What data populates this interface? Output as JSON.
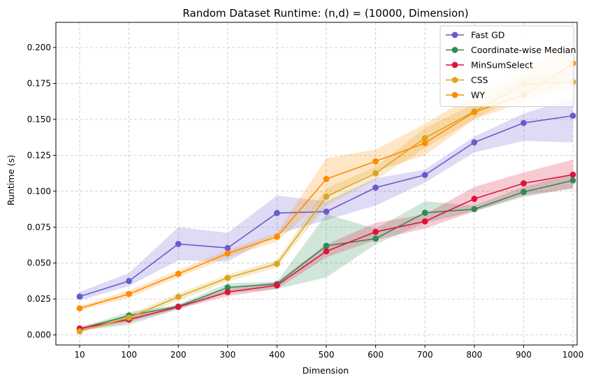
{
  "chart_data": {
    "type": "line",
    "title": "Random Dataset Runtime: (n,d) = (10000, Dimension)",
    "xlabel": "Dimension",
    "ylabel": "Runtime (s)",
    "categories": [
      "10",
      "100",
      "200",
      "300",
      "400",
      "500",
      "600",
      "700",
      "800",
      "900",
      "1000"
    ],
    "ylim": [
      -0.007,
      0.2175
    ],
    "yticks": [
      0.0,
      0.025,
      0.05,
      0.075,
      0.1,
      0.125,
      0.15,
      0.175,
      0.2
    ],
    "ytick_labels": [
      "0.000",
      "0.025",
      "0.050",
      "0.075",
      "0.100",
      "0.125",
      "0.150",
      "0.175",
      "0.200"
    ],
    "grid": true,
    "legend_position": "top-right",
    "series": [
      {
        "name": "Fast GD",
        "color": "#6a5acd",
        "values": [
          0.0267,
          0.0375,
          0.0633,
          0.0605,
          0.0848,
          0.0858,
          0.1025,
          0.1113,
          0.134,
          0.1475,
          0.1525
        ],
        "lower": [
          0.024,
          0.034,
          0.052,
          0.051,
          0.07,
          0.08,
          0.09,
          0.106,
          0.127,
          0.135,
          0.134
        ],
        "upper": [
          0.03,
          0.043,
          0.075,
          0.071,
          0.097,
          0.093,
          0.109,
          0.115,
          0.138,
          0.154,
          0.165
        ]
      },
      {
        "name": "Coordinate-wise Median",
        "color": "#2e8b57",
        "values": [
          0.004,
          0.0135,
          0.0198,
          0.033,
          0.0355,
          0.062,
          0.067,
          0.085,
          0.0875,
          0.0995,
          0.1075
        ],
        "lower": [
          0.003,
          0.007,
          0.018,
          0.029,
          0.032,
          0.04,
          0.063,
          0.078,
          0.086,
          0.096,
          0.102
        ],
        "upper": [
          0.005,
          0.016,
          0.021,
          0.036,
          0.037,
          0.084,
          0.074,
          0.093,
          0.09,
          0.103,
          0.112
        ]
      },
      {
        "name": "MinSumSelect",
        "color": "#dc143c",
        "values": [
          0.0045,
          0.0107,
          0.0195,
          0.0298,
          0.0345,
          0.0582,
          0.0717,
          0.079,
          0.0947,
          0.1055,
          0.1115
        ],
        "lower": [
          0.003,
          0.009,
          0.018,
          0.027,
          0.032,
          0.054,
          0.066,
          0.074,
          0.086,
          0.097,
          0.102
        ],
        "upper": [
          0.006,
          0.0125,
          0.021,
          0.032,
          0.037,
          0.063,
          0.078,
          0.084,
          0.103,
          0.113,
          0.122
        ]
      },
      {
        "name": "CSS",
        "color": "#daa520",
        "values": [
          0.0025,
          0.012,
          0.0265,
          0.0397,
          0.0495,
          0.0962,
          0.1125,
          0.137,
          0.1555,
          0.1745,
          0.176
        ],
        "lower": [
          0.002,
          0.01,
          0.024,
          0.037,
          0.047,
          0.09,
          0.108,
          0.13,
          0.15,
          0.168,
          0.17
        ],
        "upper": [
          0.0035,
          0.014,
          0.029,
          0.042,
          0.052,
          0.102,
          0.117,
          0.144,
          0.161,
          0.18,
          0.182
        ]
      },
      {
        "name": "WY",
        "color": "#ff8c00",
        "values": [
          0.0185,
          0.0285,
          0.0425,
          0.0567,
          0.0683,
          0.1085,
          0.1208,
          0.1335,
          0.155,
          0.167,
          0.189
        ],
        "lower": [
          0.017,
          0.026,
          0.04,
          0.054,
          0.065,
          0.096,
          0.114,
          0.125,
          0.15,
          0.162,
          0.178
        ],
        "upper": [
          0.02,
          0.031,
          0.045,
          0.059,
          0.071,
          0.123,
          0.129,
          0.147,
          0.167,
          0.182,
          0.206
        ]
      }
    ]
  }
}
